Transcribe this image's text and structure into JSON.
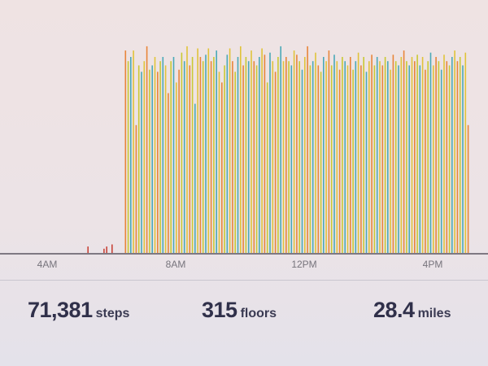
{
  "chart_data": {
    "type": "bar",
    "title": "",
    "xlabel": "",
    "ylabel": "",
    "x_ticks": [
      "4AM",
      "8AM",
      "12PM",
      "4PM"
    ],
    "x_start": "6:25AM",
    "x_interval_minutes": 5,
    "y_scale": "relative (no axis printed)",
    "ylim": [
      0,
      100
    ],
    "grid": false,
    "bar_colors": [
      "#e8853a",
      "#c9c933",
      "#4aa9b8",
      "#e0c33a"
    ],
    "early_bars": [
      {
        "time": "5:15AM",
        "value": 3
      },
      {
        "time": "5:45AM",
        "value": 2
      },
      {
        "time": "5:50AM",
        "value": 3
      },
      {
        "time": "6:00AM",
        "value": 4
      }
    ],
    "values": [
      95,
      90,
      92,
      95,
      60,
      88,
      85,
      90,
      97,
      86,
      88,
      92,
      85,
      90,
      92,
      88,
      75,
      90,
      92,
      80,
      86,
      94,
      90,
      97,
      88,
      92,
      70,
      96,
      92,
      90,
      93,
      96,
      90,
      92,
      95,
      85,
      80,
      88,
      93,
      96,
      90,
      85,
      92,
      97,
      88,
      92,
      90,
      95,
      90,
      88,
      92,
      96,
      93,
      80,
      94,
      90,
      85,
      92,
      97,
      90,
      92,
      90,
      88,
      95,
      93,
      90,
      86,
      92,
      97,
      88,
      90,
      94,
      88,
      85,
      92,
      90,
      95,
      88,
      93,
      90,
      86,
      92,
      90,
      88,
      92,
      86,
      90,
      94,
      88,
      92,
      85,
      90,
      93,
      88,
      92,
      90,
      88,
      92,
      90,
      86,
      93,
      90,
      88,
      92,
      95,
      90,
      88,
      92,
      90,
      93,
      88,
      92,
      86,
      90,
      94,
      88,
      92,
      90,
      86,
      93,
      90,
      88,
      92,
      95,
      90,
      92,
      88,
      94,
      60
    ]
  },
  "stats": {
    "steps": {
      "value": "71,381",
      "unit": "steps"
    },
    "floors": {
      "value": "315",
      "unit": "floors"
    },
    "miles": {
      "value": "28.4",
      "unit": "miles"
    }
  }
}
